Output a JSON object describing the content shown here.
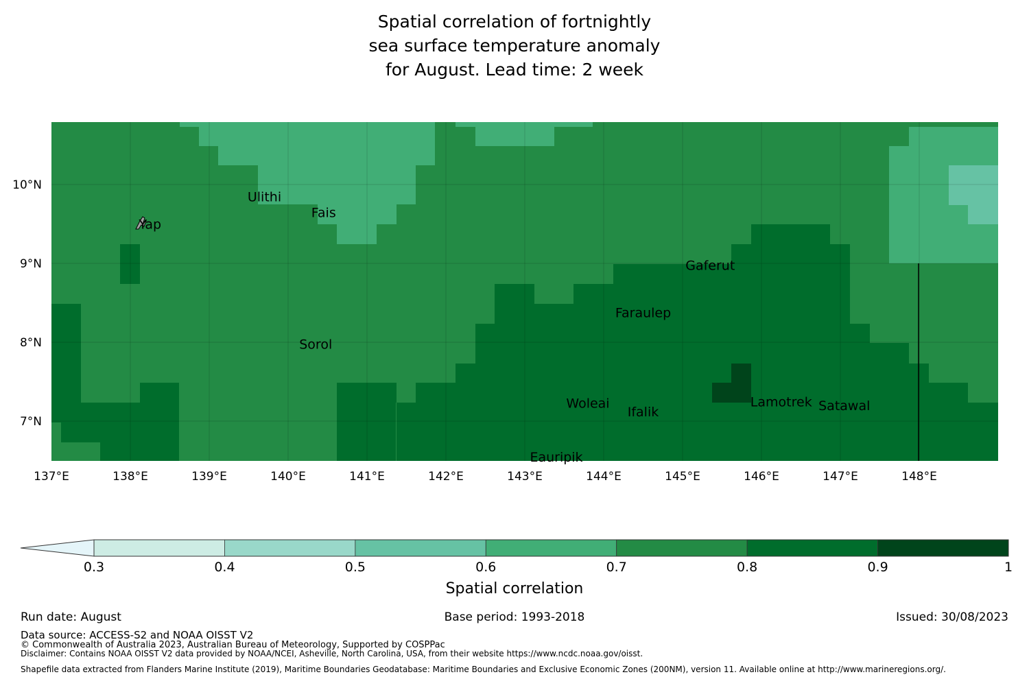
{
  "title": {
    "line1": "Spatial correlation of fortnightly",
    "line2": "sea surface temperature anomaly",
    "line3": "for August. Lead time: 2 week"
  },
  "map": {
    "lon_labels": [
      "137°E",
      "138°E",
      "139°E",
      "140°E",
      "141°E",
      "142°E",
      "143°E",
      "144°E",
      "145°E",
      "146°E",
      "147°E",
      "148°E"
    ],
    "lat_labels": [
      "10°N",
      "9°N",
      "8°N",
      "7°N"
    ],
    "places": [
      {
        "name": "Yap",
        "lon": 138.25,
        "lat": 9.5
      },
      {
        "name": "Ulithi",
        "lon": 139.7,
        "lat": 9.85
      },
      {
        "name": "Fais",
        "lon": 140.45,
        "lat": 9.65
      },
      {
        "name": "Gaferut",
        "lon": 145.35,
        "lat": 8.98
      },
      {
        "name": "Faraulep",
        "lon": 144.5,
        "lat": 8.38
      },
      {
        "name": "Sorol",
        "lon": 140.35,
        "lat": 7.98
      },
      {
        "name": "Woleai",
        "lon": 143.8,
        "lat": 7.23
      },
      {
        "name": "Ifalik",
        "lon": 144.5,
        "lat": 7.12
      },
      {
        "name": "Lamotrek",
        "lon": 146.25,
        "lat": 7.25
      },
      {
        "name": "Satawal",
        "lon": 147.05,
        "lat": 7.2
      },
      {
        "name": "Eauripik",
        "lon": 143.4,
        "lat": 6.55
      }
    ],
    "colors": {
      "0.3-0.4": "#cdece4",
      "0.4-0.5": "#99d8c9",
      "0.5-0.6": "#66c2a4",
      "0.6-0.7": "#41ae76",
      "0.7-0.8": "#238b45",
      "0.8-0.9": "#006d2c",
      "0.9-1": "#00441b",
      "below-0.3": "#e5f5f9"
    }
  },
  "colorbar": {
    "ticks": [
      "0.3",
      "0.4",
      "0.5",
      "0.6",
      "0.7",
      "0.8",
      "0.9",
      "1"
    ],
    "label": "Spatial correlation"
  },
  "footer": {
    "run_date": "Run date: August",
    "base_period": "Base period: 1993-2018",
    "issued": "Issued: 30/08/2023",
    "data_source": "Data source: ACCESS-S2 and NOAA OISST V2",
    "copyright": "© Commonwealth of Australia 2023, Australian Bureau of Meteorology, Supported by COSPPac",
    "disclaimer": "Disclaimer: Contains NOAA OISST V2 data provided by NOAA/NCEI, Asheville, North Carolina, USA, from their website https://www.ncdc.noaa.gov/oisst.",
    "shapefile": "Shapefile data extracted from Flanders Marine Institute (2019), Maritime Boundaries Geodatabase: Maritime Boundaries and Exclusive Economic Zones (200NM), version 11. Available online at http://www.marineregions.org/."
  }
}
